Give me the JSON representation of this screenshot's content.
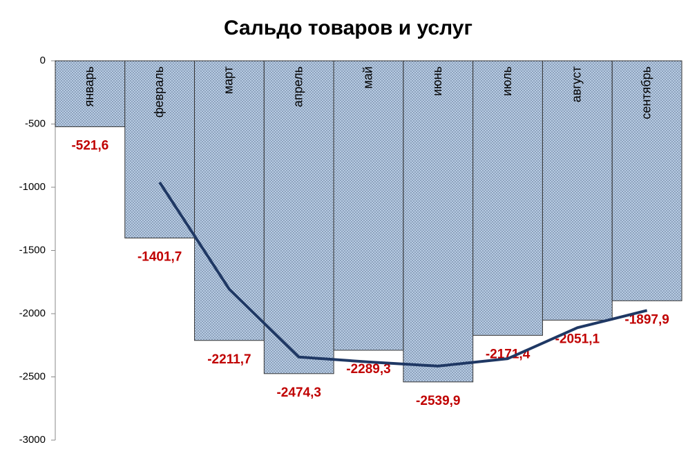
{
  "chart_data": {
    "type": "bar",
    "title": "Сальдо товаров и услуг",
    "categories": [
      "январь",
      "февраль",
      "март",
      "апрель",
      "май",
      "июнь",
      "июль",
      "август",
      "сентябрь"
    ],
    "series": [
      {
        "type": "bar",
        "color": "#b8cce4",
        "label_color": "#c00000",
        "values": [
          -521.6,
          -1401.7,
          -2211.7,
          -2474.3,
          -2289.3,
          -2539.9,
          -2171.4,
          -2051.1,
          -1897.9
        ],
        "value_labels": [
          "-521,6",
          "-1401,7",
          "-2211,7",
          "-2474,3",
          "-2289,3",
          "-2539,9",
          "-2171,4",
          "-2051,1",
          "-1897,9"
        ]
      },
      {
        "type": "line",
        "color": "#1f3864",
        "values": [
          null,
          -961.65,
          -1806.7,
          -2343,
          -2381.8,
          -2414.6,
          -2355.65,
          -2111.25,
          -1974.5
        ]
      }
    ],
    "ylim": [
      -3000,
      0
    ],
    "yticks": [
      0,
      -500,
      -1000,
      -1500,
      -2000,
      -2500,
      -3000
    ],
    "grid": false
  }
}
